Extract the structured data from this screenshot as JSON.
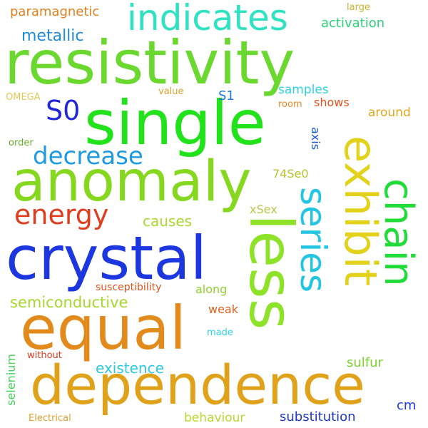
{
  "words": [
    {
      "id": "resistivity",
      "text": "resistivity",
      "color": "#6ad82e"
    },
    {
      "id": "single",
      "text": "single",
      "color": "#22e21c"
    },
    {
      "id": "anomaly",
      "text": "anomaly",
      "color": "#86d81f"
    },
    {
      "id": "crystal",
      "text": "crystal",
      "color": "#1c37e0"
    },
    {
      "id": "dependence",
      "text": "dependence",
      "color": "#e0a21a"
    },
    {
      "id": "equal",
      "text": "equal",
      "color": "#e28a1c"
    },
    {
      "id": "indicates",
      "text": "indicates",
      "color": "#2ee2c2"
    },
    {
      "id": "less",
      "text": "less",
      "color": "#8ee227"
    },
    {
      "id": "series",
      "text": "series",
      "color": "#22c5e2"
    },
    {
      "id": "exhibit",
      "text": "exhibit",
      "color": "#e2d21c"
    },
    {
      "id": "chain",
      "text": "chain",
      "color": "#22dc3a"
    },
    {
      "id": "energy",
      "text": "energy",
      "color": "#e03d1f"
    },
    {
      "id": "decrease",
      "text": "decrease",
      "color": "#1f9ae0"
    },
    {
      "id": "s0",
      "text": "S0",
      "color": "#2228d8"
    },
    {
      "id": "metallic",
      "text": "metallic",
      "color": "#1f8be0"
    },
    {
      "id": "paramagnetic",
      "text": "paramagnetic",
      "color": "#e0801f"
    },
    {
      "id": "activation",
      "text": "activation",
      "color": "#2ed27a"
    },
    {
      "id": "large",
      "text": "large",
      "color": "#c8b42e"
    },
    {
      "id": "s1",
      "text": "S1",
      "color": "#1c78d8"
    },
    {
      "id": "samples",
      "text": "samples",
      "color": "#2ed2e0"
    },
    {
      "id": "shows",
      "text": "shows",
      "color": "#e0521c"
    },
    {
      "id": "around",
      "text": "around",
      "color": "#e0a81f"
    },
    {
      "id": "omega",
      "text": "OMEGA",
      "color": "#e2ca5a"
    },
    {
      "id": "value",
      "text": "value",
      "color": "#e0a030"
    },
    {
      "id": "room",
      "text": "room",
      "color": "#e28a28"
    },
    {
      "id": "order",
      "text": "order",
      "color": "#6aaa2e"
    },
    {
      "id": "axis",
      "text": "axis",
      "color": "#1f5ad8"
    },
    {
      "id": "74se0",
      "text": "74Se0",
      "color": "#b8c22e"
    },
    {
      "id": "causes",
      "text": "causes",
      "color": "#a8d82e"
    },
    {
      "id": "xsex",
      "text": "xSex",
      "color": "#b8c84a"
    },
    {
      "id": "semiconductive",
      "text": "semiconductive",
      "color": "#a6d82e"
    },
    {
      "id": "susceptibility",
      "text": "susceptibility",
      "color": "#e0521c"
    },
    {
      "id": "along",
      "text": "along",
      "color": "#8ed22e"
    },
    {
      "id": "weak",
      "text": "weak",
      "color": "#e0601c"
    },
    {
      "id": "selenium",
      "text": "selenium",
      "color": "#44d25a"
    },
    {
      "id": "made",
      "text": "made",
      "color": "#2ed2e0"
    },
    {
      "id": "without",
      "text": "without",
      "color": "#e03a1c"
    },
    {
      "id": "existence",
      "text": "existence",
      "color": "#2ec8e0"
    },
    {
      "id": "sulfur",
      "text": "sulfur",
      "color": "#7ad22e"
    },
    {
      "id": "cm",
      "text": "cm",
      "color": "#2238d8"
    },
    {
      "id": "electrical",
      "text": "Electrical",
      "color": "#e0a030"
    },
    {
      "id": "behaviour",
      "text": "behaviour",
      "color": "#b8d82e"
    },
    {
      "id": "substitution",
      "text": "substitution",
      "color": "#2238c8"
    }
  ]
}
